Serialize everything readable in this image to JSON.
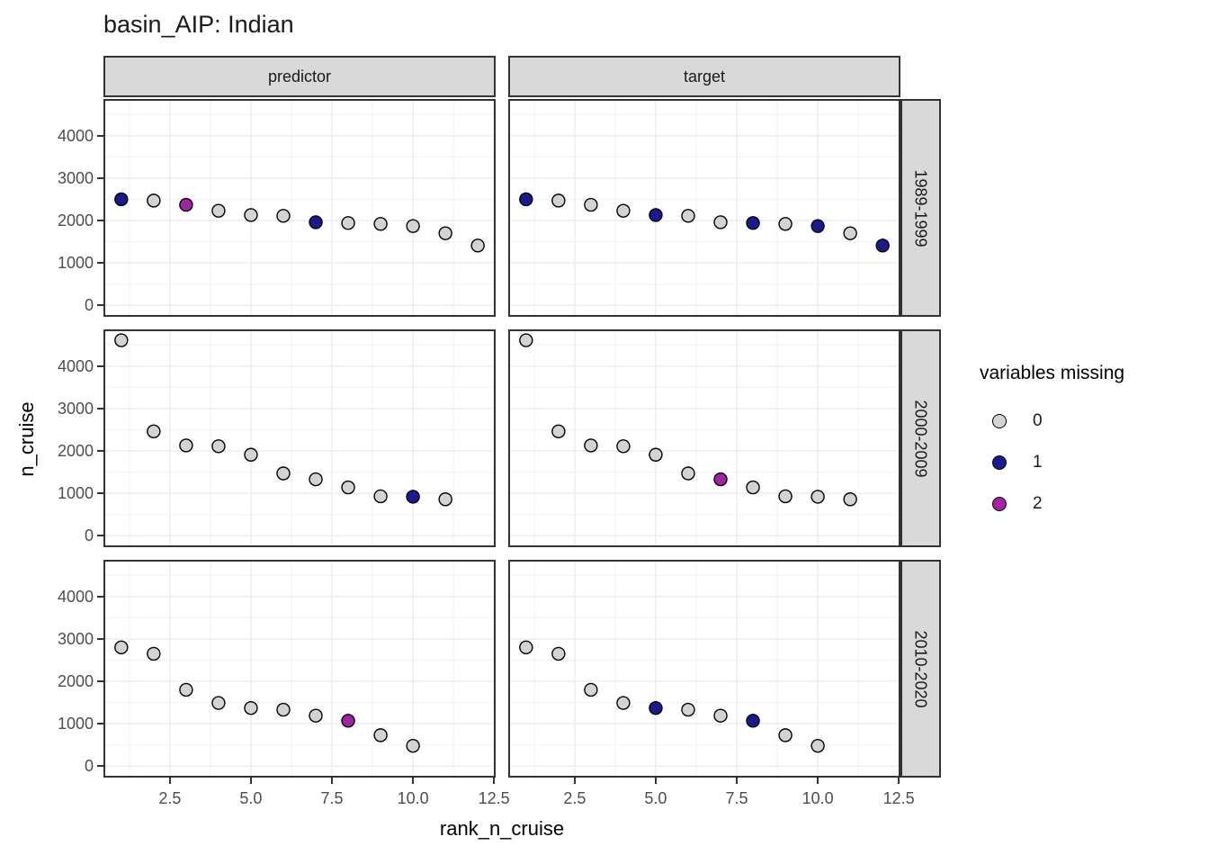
{
  "chart_data": {
    "type": "scatter",
    "title": "basin_AIP: Indian",
    "xlabel": "rank_n_cruise",
    "ylabel": "n_cruise",
    "facet_cols": [
      "predictor",
      "target"
    ],
    "facet_rows": [
      "1989-1999",
      "2000-2009",
      "2010-2020"
    ],
    "legend": {
      "title": "variables missing",
      "entries": [
        {
          "label": "0",
          "color": "#d3d3d3"
        },
        {
          "label": "1",
          "color": "#1a1a8c"
        },
        {
          "label": "2",
          "color": "#a224a2"
        }
      ]
    },
    "point_stroke": "#000000",
    "grid": "on",
    "legend_position": "right",
    "xlim": [
      0.45,
      12.55
    ],
    "ylim": [
      -270,
      4865
    ],
    "x_ticks": [
      2.5,
      5.0,
      7.5,
      10.0,
      12.5
    ],
    "x_tick_labels": [
      "2.5",
      "5.0",
      "7.5",
      "10.0",
      "12.5"
    ],
    "x_minor_ticks": [
      1.25,
      3.75,
      6.25,
      8.75,
      11.25
    ],
    "y_ticks": [
      0,
      1000,
      2000,
      3000,
      4000
    ],
    "y_tick_labels": [
      "0",
      "1000",
      "2000",
      "3000",
      "4000"
    ],
    "y_minor_ticks": [
      500,
      1500,
      2500,
      3500,
      4500
    ],
    "panels": [
      {
        "row": "1989-1999",
        "col": "predictor",
        "x": [
          1,
          2,
          3,
          4,
          5,
          6,
          7,
          8,
          9,
          10,
          11,
          12
        ],
        "y": [
          2500,
          2470,
          2370,
          2230,
          2130,
          2110,
          1960,
          1940,
          1920,
          1870,
          1700,
          1410
        ],
        "missing": [
          1,
          0,
          2,
          0,
          0,
          0,
          1,
          0,
          0,
          0,
          0,
          0
        ]
      },
      {
        "row": "1989-1999",
        "col": "target",
        "x": [
          1,
          2,
          3,
          4,
          5,
          6,
          7,
          8,
          9,
          10,
          11,
          12
        ],
        "y": [
          2500,
          2470,
          2370,
          2230,
          2130,
          2110,
          1960,
          1940,
          1920,
          1870,
          1700,
          1410
        ],
        "missing": [
          1,
          0,
          0,
          0,
          1,
          0,
          0,
          1,
          0,
          1,
          0,
          1
        ]
      },
      {
        "row": "2000-2009",
        "col": "predictor",
        "x": [
          1,
          2,
          3,
          4,
          5,
          6,
          7,
          8,
          9,
          10,
          11
        ],
        "y": [
          4610,
          2460,
          2130,
          2110,
          1910,
          1470,
          1330,
          1140,
          930,
          920,
          860
        ],
        "missing": [
          0,
          0,
          0,
          0,
          0,
          0,
          0,
          0,
          0,
          1,
          0
        ]
      },
      {
        "row": "2000-2009",
        "col": "target",
        "x": [
          1,
          2,
          3,
          4,
          5,
          6,
          7,
          8,
          9,
          10,
          11
        ],
        "y": [
          4610,
          2460,
          2130,
          2110,
          1910,
          1470,
          1330,
          1140,
          930,
          920,
          860
        ],
        "missing": [
          0,
          0,
          0,
          0,
          0,
          0,
          2,
          0,
          0,
          0,
          0
        ]
      },
      {
        "row": "2010-2020",
        "col": "predictor",
        "x": [
          1,
          2,
          3,
          4,
          5,
          6,
          7,
          8,
          9,
          10
        ],
        "y": [
          2800,
          2650,
          1800,
          1490,
          1370,
          1330,
          1190,
          1070,
          730,
          480
        ],
        "missing": [
          0,
          0,
          0,
          0,
          0,
          0,
          0,
          2,
          0,
          0
        ]
      },
      {
        "row": "2010-2020",
        "col": "target",
        "x": [
          1,
          2,
          3,
          4,
          5,
          6,
          7,
          8,
          9,
          10
        ],
        "y": [
          2800,
          2650,
          1800,
          1490,
          1370,
          1330,
          1190,
          1070,
          730,
          480
        ],
        "missing": [
          0,
          0,
          0,
          0,
          1,
          0,
          0,
          1,
          0,
          0
        ]
      }
    ]
  }
}
